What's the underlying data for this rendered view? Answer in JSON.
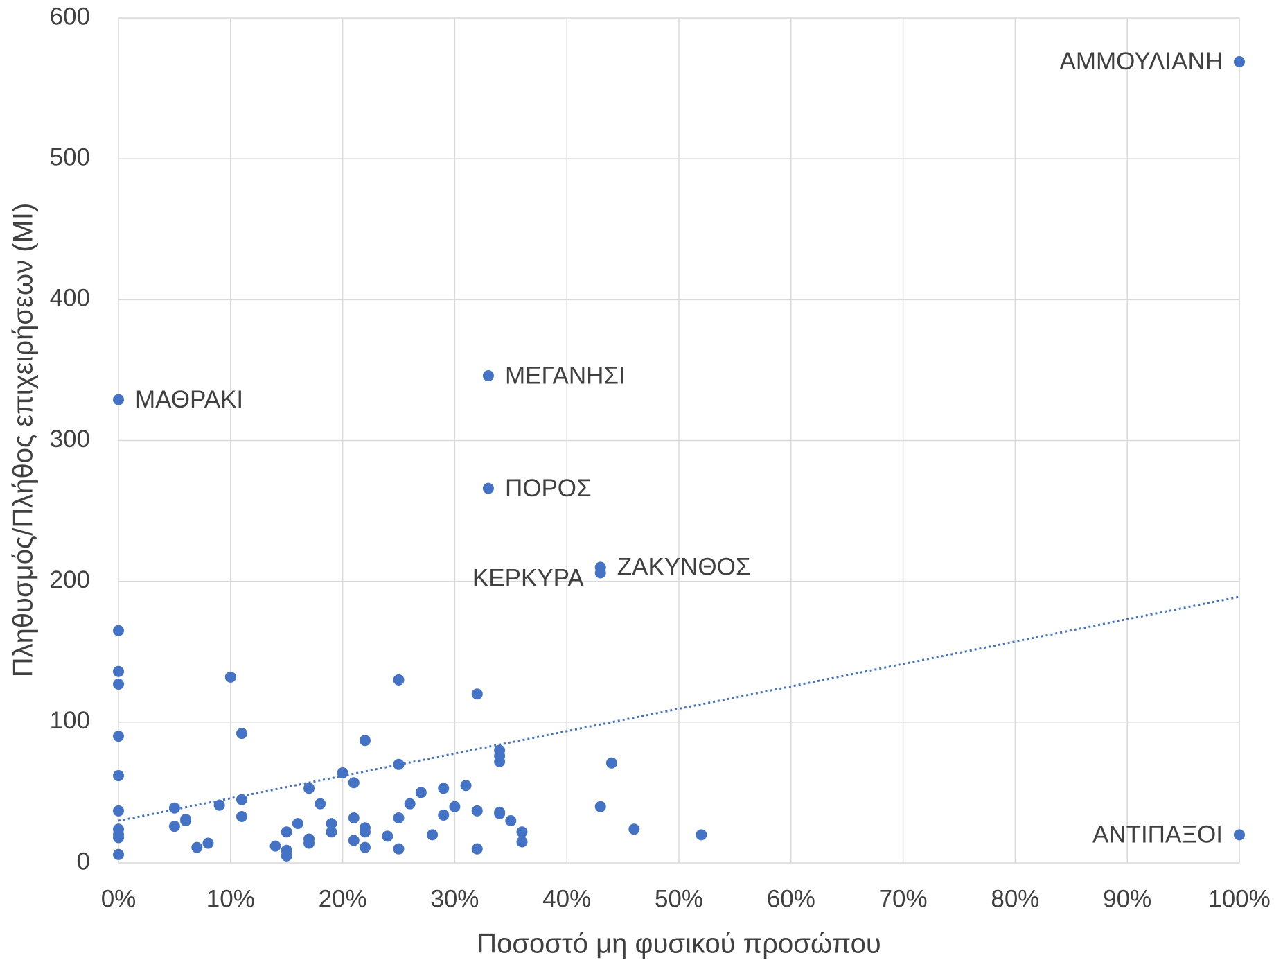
{
  "chart_data": {
    "type": "scatter",
    "xlabel": "Ποσοστό μη φυσικού προσώπου",
    "ylabel": "Πληθυσμός/Πλήθος επιχειρήσεων (ΜΙ)",
    "xlim": [
      0,
      100
    ],
    "xticks": [
      {
        "value": 0,
        "label": "0%"
      },
      {
        "value": 10,
        "label": "10%"
      },
      {
        "value": 20,
        "label": "20%"
      },
      {
        "value": 30,
        "label": "30%"
      },
      {
        "value": 40,
        "label": "40%"
      },
      {
        "value": 50,
        "label": "50%"
      },
      {
        "value": 60,
        "label": "60%"
      },
      {
        "value": 70,
        "label": "70%"
      },
      {
        "value": 80,
        "label": "80%"
      },
      {
        "value": 90,
        "label": "90%"
      },
      {
        "value": 100,
        "label": "100%"
      }
    ],
    "ylim": [
      0,
      600
    ],
    "yticks": [
      0,
      100,
      200,
      300,
      400,
      500,
      600
    ],
    "grid": true,
    "series": [
      {
        "color": "#4472c4",
        "x": [
          100,
          0,
          33,
          33,
          43,
          43,
          100,
          0,
          0,
          0,
          0,
          0,
          0,
          0,
          0,
          0,
          0,
          5,
          5,
          6,
          6,
          7,
          8,
          9,
          10,
          11,
          11,
          11,
          14,
          15,
          15,
          15,
          16,
          17,
          17,
          17,
          18,
          19,
          19,
          20,
          21,
          21,
          21,
          22,
          22,
          22,
          22,
          24,
          25,
          25,
          25,
          25,
          26,
          27,
          28,
          29,
          29,
          30,
          31,
          32,
          32,
          32,
          34,
          34,
          34,
          34,
          34,
          35,
          36,
          36,
          43,
          44,
          46,
          52
        ],
        "values": [
          569,
          329,
          346,
          266,
          206,
          210,
          20,
          165,
          136,
          127,
          90,
          62,
          37,
          24,
          20,
          18,
          6,
          39,
          26,
          31,
          30,
          11,
          14,
          41,
          132,
          92,
          45,
          33,
          12,
          22,
          9,
          5,
          28,
          53,
          17,
          14,
          42,
          28,
          22,
          64,
          57,
          32,
          16,
          87,
          25,
          22,
          11,
          19,
          130,
          70,
          32,
          10,
          42,
          50,
          20,
          53,
          34,
          40,
          55,
          120,
          37,
          10,
          80,
          76,
          72,
          36,
          35,
          30,
          22,
          15,
          40,
          71,
          24,
          20
        ],
        "point_labels": [
          "ΑΜΜΟΥΛΙΑΝΗ",
          "ΜΑΘΡΑΚΙ",
          "ΜΕΓΑΝΗΣΙ",
          "ΠΟΡΟΣ",
          "ΚΕΡΚΥΡΑ",
          "ΖΑΚΥΝΘΟΣ",
          "ΑΝΤΙΠΑΞΟΙ",
          null,
          null,
          null,
          null,
          null,
          null,
          null,
          null,
          null,
          null,
          null,
          null,
          null,
          null,
          null,
          null,
          null,
          null,
          null,
          null,
          null,
          null,
          null,
          null,
          null,
          null,
          null,
          null,
          null,
          null,
          null,
          null,
          null,
          null,
          null,
          null,
          null,
          null,
          null,
          null,
          null,
          null,
          null,
          null,
          null,
          null,
          null,
          null,
          null,
          null,
          null,
          null,
          null,
          null,
          null,
          null,
          null,
          null,
          null,
          null,
          null,
          null,
          null,
          null,
          null,
          null,
          null
        ]
      }
    ],
    "trendline": {
      "color": "#4472c4",
      "x": [
        0,
        100
      ],
      "values": [
        30,
        189
      ]
    }
  }
}
